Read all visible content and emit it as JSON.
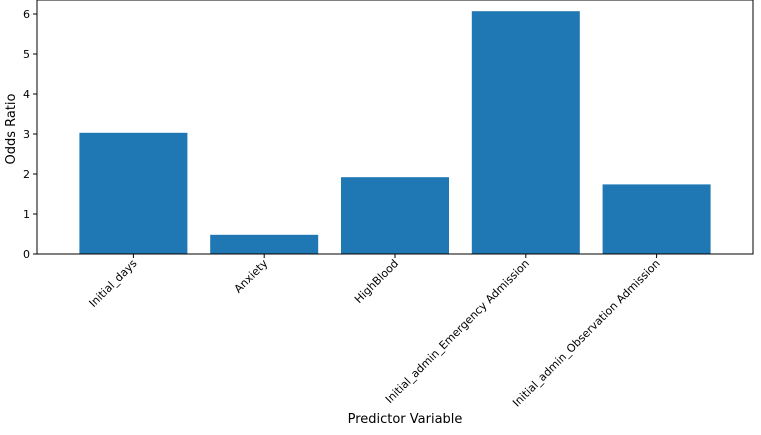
{
  "chart_data": {
    "type": "bar",
    "title": "",
    "xlabel": "Predictor Variable",
    "ylabel": "Odds Ratio",
    "categories": [
      "Initial_days",
      "Anxiety",
      "HighBlood",
      "Initial_admin_Emergency Admission",
      "Initial_admin_Observation Admission"
    ],
    "values": [
      3.03,
      0.48,
      1.92,
      6.07,
      1.74
    ],
    "ylim": [
      0,
      6.35
    ],
    "yticks": [
      "0",
      "1",
      "2",
      "3",
      "4",
      "5",
      "6"
    ],
    "grid": false,
    "bar_color": "#1f77b4"
  }
}
